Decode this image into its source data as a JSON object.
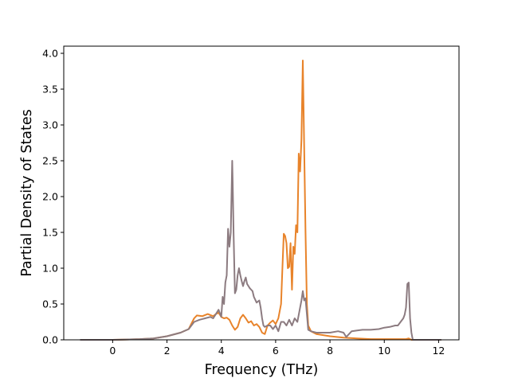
{
  "chart_data": {
    "type": "line",
    "title": "",
    "xlabel": "Frequency (THz)",
    "ylabel": "Partial Density of States",
    "xlim": [
      -1.8,
      12.75
    ],
    "ylim": [
      0,
      4.1
    ],
    "xticks": [
      0,
      2,
      4,
      6,
      8,
      10,
      12
    ],
    "yticks": [
      0.0,
      0.5,
      1.0,
      1.5,
      2.0,
      2.5,
      3.0,
      3.5,
      4.0
    ],
    "grid": false,
    "legend": "none",
    "series": [
      {
        "color": "#e8832a",
        "x": [
          -1.2,
          0,
          0.5,
          1,
          1.5,
          2,
          2.5,
          2.8,
          3.0,
          3.1,
          3.3,
          3.5,
          3.7,
          3.8,
          3.9,
          4.0,
          4.1,
          4.2,
          4.3,
          4.4,
          4.5,
          4.6,
          4.7,
          4.8,
          4.9,
          5.0,
          5.1,
          5.2,
          5.3,
          5.4,
          5.5,
          5.6,
          5.7,
          5.8,
          5.9,
          6.0,
          6.1,
          6.2,
          6.25,
          6.3,
          6.35,
          6.4,
          6.45,
          6.5,
          6.55,
          6.6,
          6.65,
          6.7,
          6.75,
          6.8,
          6.85,
          6.9,
          6.95,
          7.0,
          7.05,
          7.1,
          7.15,
          7.2,
          7.3,
          7.5,
          8.0,
          8.5,
          9.0,
          9.5,
          10.0,
          10.5,
          10.8,
          10.9,
          11.0,
          11.5,
          12.1
        ],
        "values": [
          0.0,
          0.0,
          0.005,
          0.01,
          0.02,
          0.05,
          0.1,
          0.15,
          0.3,
          0.34,
          0.33,
          0.36,
          0.33,
          0.36,
          0.38,
          0.32,
          0.3,
          0.31,
          0.28,
          0.2,
          0.14,
          0.18,
          0.3,
          0.35,
          0.3,
          0.24,
          0.26,
          0.2,
          0.22,
          0.18,
          0.1,
          0.08,
          0.2,
          0.24,
          0.27,
          0.22,
          0.3,
          0.5,
          1.0,
          1.48,
          1.45,
          1.35,
          1.0,
          1.02,
          1.35,
          0.7,
          1.3,
          1.2,
          1.6,
          1.5,
          2.6,
          2.35,
          2.8,
          3.9,
          2.7,
          1.5,
          0.5,
          0.2,
          0.12,
          0.08,
          0.05,
          0.03,
          0.02,
          0.01,
          0.01,
          0.01,
          0.01,
          0.02,
          0.0,
          0.0,
          0.0
        ]
      },
      {
        "color": "#8c7b80",
        "x": [
          -1.2,
          0,
          0.5,
          1,
          1.5,
          2,
          2.5,
          2.8,
          3.0,
          3.2,
          3.4,
          3.6,
          3.7,
          3.8,
          3.9,
          4.0,
          4.05,
          4.1,
          4.15,
          4.2,
          4.25,
          4.3,
          4.35,
          4.4,
          4.42,
          4.45,
          4.5,
          4.55,
          4.6,
          4.65,
          4.7,
          4.75,
          4.8,
          4.85,
          4.9,
          4.95,
          5.0,
          5.05,
          5.1,
          5.15,
          5.2,
          5.3,
          5.4,
          5.45,
          5.5,
          5.55,
          5.6,
          5.7,
          5.8,
          5.9,
          6.0,
          6.1,
          6.2,
          6.3,
          6.4,
          6.5,
          6.6,
          6.7,
          6.8,
          6.9,
          6.95,
          7.0,
          7.05,
          7.1,
          7.2,
          7.3,
          7.5,
          7.8,
          8.0,
          8.3,
          8.5,
          8.6,
          8.8,
          9.0,
          9.2,
          9.5,
          9.8,
          10.0,
          10.2,
          10.4,
          10.5,
          10.6,
          10.7,
          10.75,
          10.8,
          10.85,
          10.9,
          10.95,
          11.0,
          11.05,
          11.1,
          11.5,
          12.1
        ],
        "values": [
          0.0,
          0.0,
          0.005,
          0.01,
          0.02,
          0.05,
          0.1,
          0.15,
          0.25,
          0.28,
          0.3,
          0.32,
          0.3,
          0.36,
          0.42,
          0.32,
          0.6,
          0.5,
          0.8,
          0.9,
          1.55,
          1.3,
          1.5,
          2.5,
          2.2,
          1.5,
          0.65,
          0.7,
          0.9,
          1.0,
          0.9,
          0.82,
          0.75,
          0.82,
          0.87,
          0.78,
          0.75,
          0.72,
          0.7,
          0.68,
          0.6,
          0.52,
          0.55,
          0.45,
          0.3,
          0.2,
          0.18,
          0.2,
          0.2,
          0.15,
          0.2,
          0.12,
          0.25,
          0.25,
          0.2,
          0.28,
          0.2,
          0.3,
          0.25,
          0.45,
          0.55,
          0.68,
          0.55,
          0.58,
          0.14,
          0.12,
          0.1,
          0.1,
          0.1,
          0.12,
          0.1,
          0.04,
          0.12,
          0.13,
          0.14,
          0.14,
          0.15,
          0.17,
          0.18,
          0.2,
          0.2,
          0.25,
          0.3,
          0.35,
          0.45,
          0.78,
          0.8,
          0.3,
          0.1,
          0.0,
          0.0,
          0.0,
          0.0
        ]
      }
    ]
  }
}
